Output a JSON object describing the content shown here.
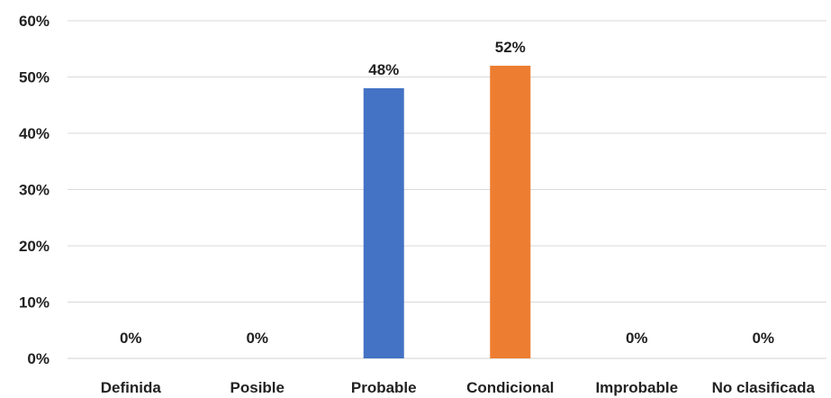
{
  "chart_data": {
    "type": "bar",
    "categories": [
      "Definida",
      "Posible",
      "Probable",
      "Condicional",
      "Improbable",
      "No clasificada"
    ],
    "values": [
      0,
      0,
      48,
      52,
      0,
      0
    ],
    "data_labels": [
      "0%",
      "0%",
      "48%",
      "52%",
      "0%",
      "0%"
    ],
    "bar_colors": [
      "#4472c4",
      "#4472c4",
      "#4472c4",
      "#ed7d31",
      "#4472c4",
      "#4472c4"
    ],
    "y_ticks": [
      0,
      10,
      20,
      30,
      40,
      50,
      60
    ],
    "y_tick_labels": [
      "0%",
      "10%",
      "20%",
      "30%",
      "40%",
      "50%",
      "60%"
    ],
    "ylim": [
      0,
      60
    ],
    "grid": true,
    "legend": false,
    "title": "",
    "xlabel": "",
    "ylabel": ""
  }
}
